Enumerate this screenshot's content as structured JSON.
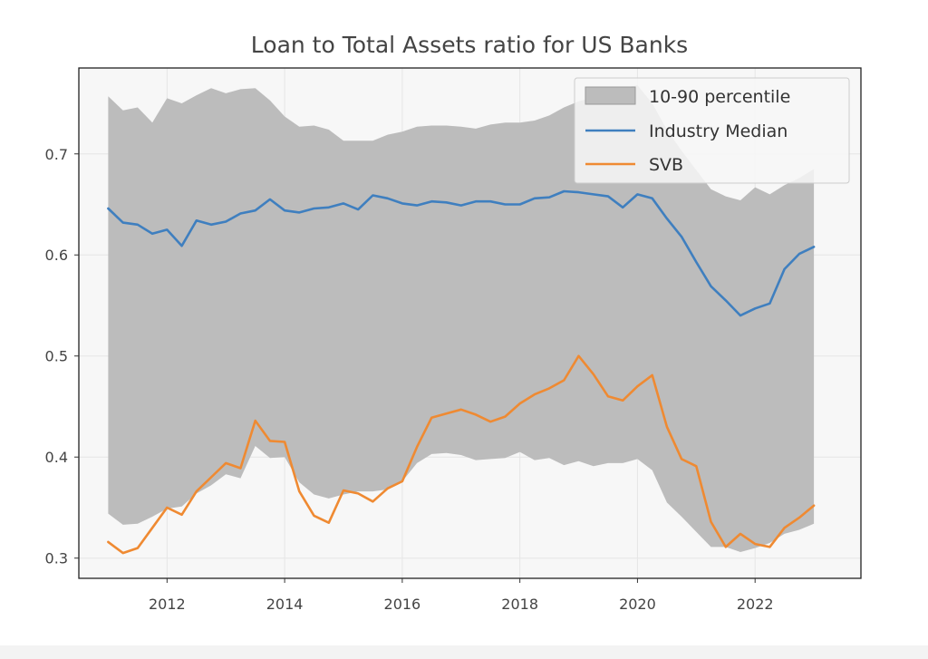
{
  "chart_data": {
    "type": "line",
    "title": "Loan to Total Assets ratio for US Banks",
    "xlabel": "",
    "ylabel": "",
    "xlim": [
      2010.5,
      2023.8
    ],
    "ylim": [
      0.28,
      0.785
    ],
    "x_ticks": [
      2012,
      2014,
      2016,
      2018,
      2020,
      2022
    ],
    "y_ticks": [
      0.3,
      0.4,
      0.5,
      0.6,
      0.7
    ],
    "grid": true,
    "legend_position": "top-right",
    "x": [
      2011.0,
      2011.25,
      2011.5,
      2011.75,
      2012.0,
      2012.25,
      2012.5,
      2012.75,
      2013.0,
      2013.25,
      2013.5,
      2013.75,
      2014.0,
      2014.25,
      2014.5,
      2014.75,
      2015.0,
      2015.25,
      2015.5,
      2015.75,
      2016.0,
      2016.25,
      2016.5,
      2016.75,
      2017.0,
      2017.25,
      2017.5,
      2017.75,
      2018.0,
      2018.25,
      2018.5,
      2018.75,
      2019.0,
      2019.25,
      2019.5,
      2019.75,
      2020.0,
      2020.25,
      2020.5,
      2020.75,
      2021.0,
      2021.25,
      2021.5,
      2021.75,
      2022.0,
      2022.25,
      2022.5,
      2022.75,
      2023.0
    ],
    "band": {
      "name": "10-90 percentile",
      "color": "#bcbcbc",
      "upper": [
        0.757,
        0.743,
        0.746,
        0.731,
        0.755,
        0.75,
        0.758,
        0.765,
        0.76,
        0.764,
        0.765,
        0.753,
        0.737,
        0.727,
        0.728,
        0.724,
        0.713,
        0.713,
        0.713,
        0.719,
        0.722,
        0.727,
        0.728,
        0.728,
        0.727,
        0.725,
        0.729,
        0.731,
        0.731,
        0.733,
        0.738,
        0.746,
        0.752,
        0.756,
        0.76,
        0.765,
        0.768,
        0.75,
        0.724,
        0.703,
        0.684,
        0.665,
        0.658,
        0.654,
        0.667,
        0.66,
        0.669,
        0.676,
        0.685
      ],
      "lower": [
        0.344,
        0.333,
        0.334,
        0.341,
        0.349,
        0.351,
        0.364,
        0.372,
        0.383,
        0.379,
        0.411,
        0.399,
        0.4,
        0.375,
        0.363,
        0.359,
        0.363,
        0.366,
        0.366,
        0.368,
        0.376,
        0.394,
        0.403,
        0.404,
        0.402,
        0.397,
        0.398,
        0.399,
        0.405,
        0.397,
        0.399,
        0.392,
        0.396,
        0.391,
        0.394,
        0.394,
        0.398,
        0.387,
        0.355,
        0.341,
        0.326,
        0.311,
        0.311,
        0.306,
        0.31,
        0.315,
        0.324,
        0.328,
        0.334
      ]
    },
    "series": [
      {
        "name": "Industry Median",
        "color": "#3f7fbf",
        "values": [
          0.646,
          0.632,
          0.63,
          0.621,
          0.625,
          0.609,
          0.634,
          0.63,
          0.633,
          0.641,
          0.644,
          0.655,
          0.644,
          0.642,
          0.646,
          0.647,
          0.651,
          0.645,
          0.659,
          0.656,
          0.651,
          0.649,
          0.653,
          0.652,
          0.649,
          0.653,
          0.653,
          0.65,
          0.65,
          0.656,
          0.657,
          0.663,
          0.662,
          0.66,
          0.658,
          0.647,
          0.66,
          0.656,
          0.636,
          0.618,
          0.593,
          0.569,
          0.555,
          0.54,
          0.547,
          0.552,
          0.586,
          0.601,
          0.608
        ]
      },
      {
        "name": "SVB",
        "color": "#ef8a32",
        "values": [
          0.316,
          0.305,
          0.31,
          0.33,
          0.35,
          0.343,
          0.366,
          0.38,
          0.394,
          0.389,
          0.436,
          0.416,
          0.415,
          0.366,
          0.342,
          0.335,
          0.367,
          0.364,
          0.356,
          0.369,
          0.376,
          0.41,
          0.439,
          0.443,
          0.447,
          0.442,
          0.435,
          0.44,
          0.453,
          0.462,
          0.468,
          0.476,
          0.5,
          0.482,
          0.46,
          0.456,
          0.47,
          0.481,
          0.43,
          0.398,
          0.391,
          0.336,
          0.311,
          0.324,
          0.314,
          0.311,
          0.33,
          0.34,
          0.352
        ]
      }
    ]
  }
}
